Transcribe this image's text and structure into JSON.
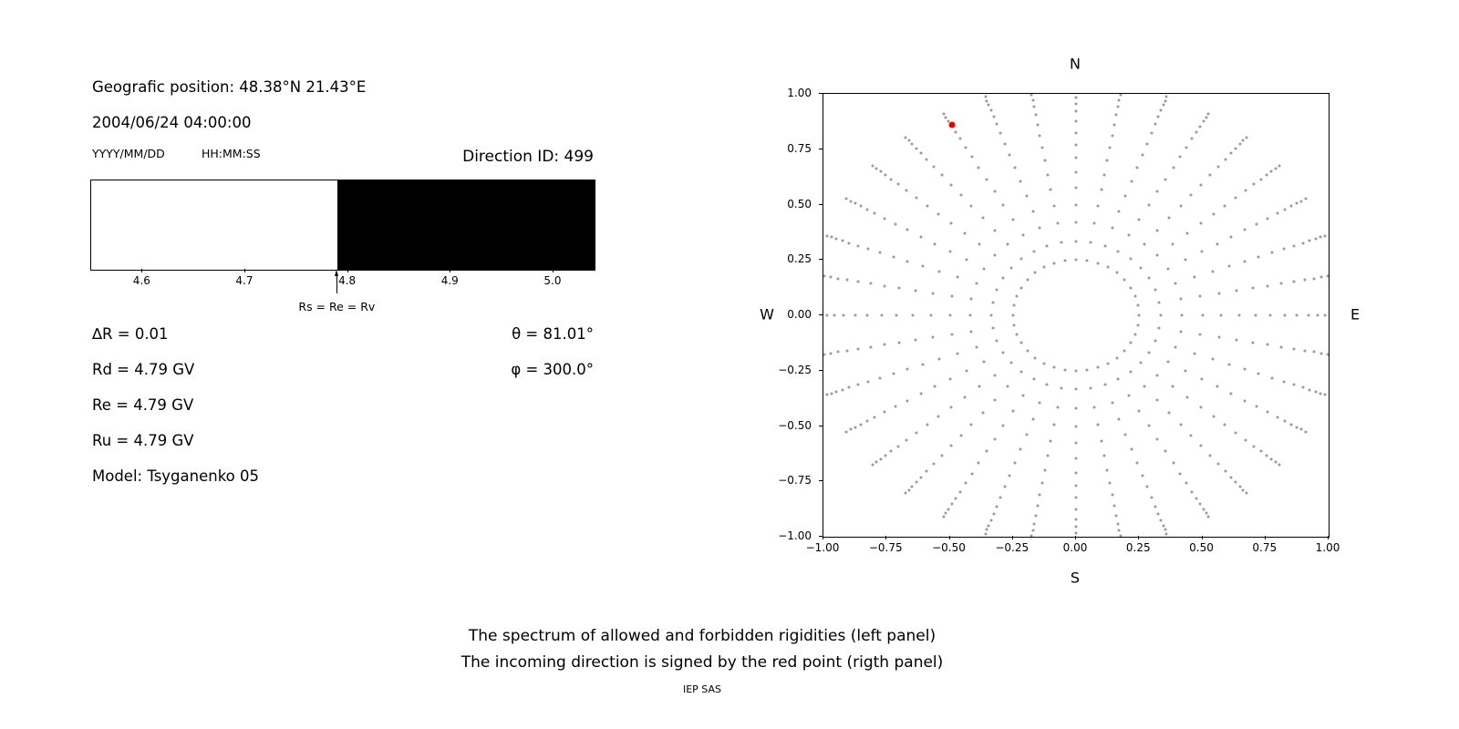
{
  "left_panel": {
    "geo_position": "Geografic position: 48.38°N 21.43°E",
    "datetime": "2004/06/24 04:00:00",
    "date_format": "YYYY/MM/DD",
    "time_format": "HH:MM:SS",
    "direction_id": "Direction ID: 499",
    "params": {
      "delta_r": "∆R = 0.01",
      "theta": "θ = 81.01°",
      "rd": "Rd = 4.79 GV",
      "phi": "φ = 300.0°",
      "re": "Re = 4.79 GV",
      "ru": "Ru = 4.79 GV",
      "model": "Model: Tsyganenko 05"
    }
  },
  "captions": {
    "line1": "The spectrum of allowed and forbidden rigidities (left panel)",
    "line2": "The incoming direction is signed by the red point (rigth panel)",
    "credit": "IEP SAS"
  },
  "chart_data": [
    {
      "type": "area",
      "x_range": [
        4.55,
        5.04
      ],
      "xticks": [
        4.6,
        4.7,
        4.8,
        4.9,
        5.0
      ],
      "regions": [
        {
          "label": "allowed",
          "from": 4.55,
          "to": 4.79,
          "color": "#ffffff"
        },
        {
          "label": "forbidden",
          "from": 4.79,
          "to": 5.04,
          "color": "#000000"
        }
      ],
      "annotation": {
        "x": 4.79,
        "label": "Rs = Re = Rv"
      }
    },
    {
      "type": "scatter",
      "xlim": [
        -1,
        1
      ],
      "ylim": [
        -1,
        1
      ],
      "xticks": [
        -1.0,
        -0.75,
        -0.5,
        -0.25,
        0.0,
        0.25,
        0.5,
        0.75,
        1.0
      ],
      "yticks": [
        -1.0,
        -0.75,
        -0.5,
        -0.25,
        0.0,
        0.25,
        0.5,
        0.75,
        1.0
      ],
      "direction_labels": {
        "top": "N",
        "bottom": "S",
        "left": "W",
        "right": "E"
      },
      "rays": {
        "count": 36,
        "start_angle_deg": 0,
        "step_deg": 10,
        "radii": [
          0.25,
          0.335,
          0.42,
          0.5,
          0.575,
          0.645,
          0.71,
          0.77,
          0.825,
          0.875,
          0.92,
          0.955,
          0.985,
          1.01,
          1.03,
          1.05
        ],
        "color": "#999999"
      },
      "red_point": {
        "x": -0.49,
        "y": 0.86,
        "color": "#ee0000"
      }
    }
  ]
}
